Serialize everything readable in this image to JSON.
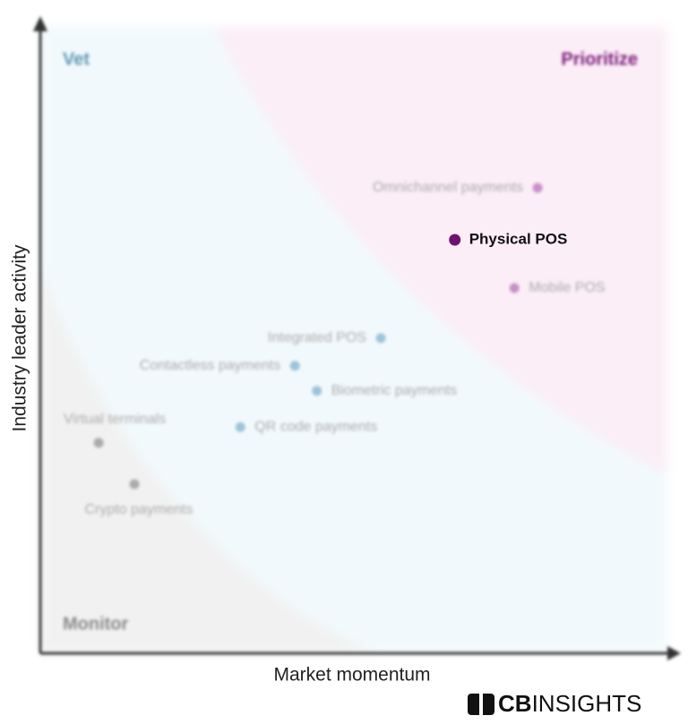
{
  "chart_data": {
    "type": "scatter",
    "x_label": "Market momentum",
    "y_label": "Industry leader activity",
    "xlim": [
      0,
      100
    ],
    "ylim": [
      0,
      100
    ],
    "quadrants": {
      "top_left": "Vet",
      "top_right": "Prioritize",
      "bottom_left": "Monitor"
    },
    "quadrant_colors": {
      "top_left": "#5f97b3",
      "top_right": "#7b1a7b",
      "bottom_left": "#8a8a8a"
    },
    "points": [
      {
        "label": "Omnichannel payments",
        "x": 79.3,
        "y": 74.3,
        "color": "#c98fc9"
      },
      {
        "label": "Physical POS",
        "x": 66.1,
        "y": 66.0,
        "color": "#6e1470",
        "highlight": true
      },
      {
        "label": "Mobile POS",
        "x": 75.6,
        "y": 58.3,
        "color": "#c98fc9"
      },
      {
        "label": "Integrated POS",
        "x": 54.3,
        "y": 50.3,
        "color": "#9cc3d9"
      },
      {
        "label": "Contactless payments",
        "x": 40.6,
        "y": 45.9,
        "color": "#9cc3d9"
      },
      {
        "label": "Biometric payments",
        "x": 44.1,
        "y": 41.9,
        "color": "#9cc3d9"
      },
      {
        "label": "QR code payments",
        "x": 31.9,
        "y": 36.1,
        "color": "#9cc3d9"
      },
      {
        "label": "Virtual terminals",
        "x": 9.3,
        "y": 33.6,
        "color": "#aaaaaa"
      },
      {
        "label": "Crypto payments",
        "x": 15.0,
        "y": 27.0,
        "color": "#aaaaaa"
      }
    ],
    "logo": {
      "bold": "CB",
      "text": "INSIGHTS"
    }
  }
}
